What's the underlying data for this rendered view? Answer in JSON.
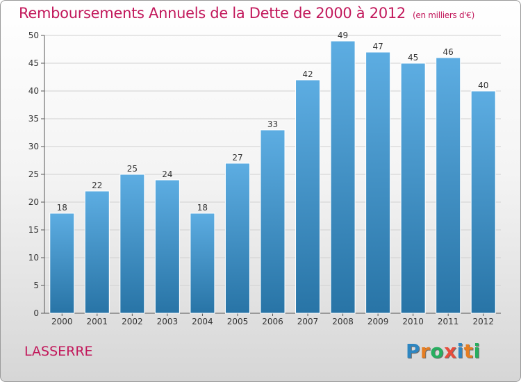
{
  "title": "Remboursements Annuels de la Dette de 2000 à 2012",
  "subtitle": "(en milliers d'€)",
  "place": "LASSERRE",
  "logo": {
    "text": "Proxiti",
    "letters": [
      {
        "ch": "P",
        "color": "#2e86c1"
      },
      {
        "ch": "r",
        "color": "#e67e22"
      },
      {
        "ch": "o",
        "color": "#27ae60"
      },
      {
        "ch": "x",
        "color": "#e74c3c"
      },
      {
        "ch": "i",
        "color": "#2e86c1"
      },
      {
        "ch": "t",
        "color": "#e67e22"
      },
      {
        "ch": "i",
        "color": "#27ae60"
      }
    ]
  },
  "colors": {
    "bar_top": "#5dade2",
    "bar_bottom": "#2874a6",
    "title": "#c2185b"
  },
  "chart_data": {
    "type": "bar",
    "categories": [
      "2000",
      "2001",
      "2002",
      "2003",
      "2004",
      "2005",
      "2006",
      "2007",
      "2008",
      "2009",
      "2010",
      "2011",
      "2012"
    ],
    "values": [
      18,
      22,
      25,
      24,
      18,
      27,
      33,
      42,
      49,
      47,
      45,
      46,
      40
    ],
    "ylim": [
      0,
      50
    ],
    "yticks": [
      0,
      5,
      10,
      15,
      20,
      25,
      30,
      35,
      40,
      45,
      50
    ],
    "grid": true,
    "title": "Remboursements Annuels de la Dette de 2000 à 2012",
    "subtitle": "(en milliers d'€)"
  }
}
